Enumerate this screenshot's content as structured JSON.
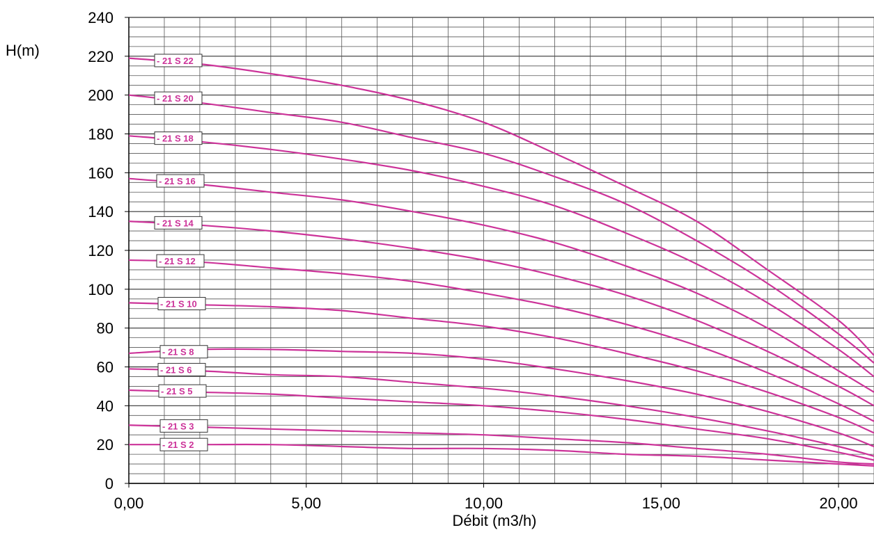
{
  "chart_data": {
    "type": "line",
    "ylabel": "H(m)",
    "xlabel": "Débit  (m3/h)",
    "xlim": [
      0,
      21
    ],
    "ylim": [
      0,
      240
    ],
    "x_ticks": [
      0,
      5,
      10,
      15,
      20
    ],
    "x_tick_labels": [
      "0,00",
      "5,00",
      "10,00",
      "15,00",
      "20,00"
    ],
    "y_ticks": [
      0,
      20,
      40,
      60,
      80,
      100,
      120,
      140,
      160,
      180,
      200,
      220,
      240
    ],
    "y_tick_labels": [
      "0",
      "20",
      "40",
      "60",
      "80",
      "100",
      "120",
      "140",
      "160",
      "180",
      "200",
      "220",
      "240"
    ],
    "grid": true,
    "line_color": "#cc3399",
    "series": [
      {
        "name": "- 21 S 22",
        "x": [
          0,
          2,
          4,
          6,
          8,
          10,
          12,
          14,
          16,
          18,
          20,
          21
        ],
        "y": [
          219,
          216,
          211,
          205,
          197,
          186,
          170,
          153,
          135,
          110,
          84,
          66
        ]
      },
      {
        "name": "- 21 S 20",
        "x": [
          0,
          2,
          4,
          6,
          8,
          10,
          12,
          14,
          16,
          18,
          20,
          21
        ],
        "y": [
          200,
          196,
          191,
          186,
          178,
          170,
          158,
          144,
          125,
          103,
          77,
          62
        ]
      },
      {
        "name": "- 21 S 18",
        "x": [
          0,
          2,
          4,
          6,
          8,
          10,
          12,
          14,
          16,
          18,
          20,
          21
        ],
        "y": [
          179,
          176,
          172,
          167,
          161,
          153,
          143,
          129,
          113,
          93,
          69,
          55
        ]
      },
      {
        "name": "- 21 S 16",
        "x": [
          0,
          2,
          4,
          6,
          8,
          10,
          12,
          14,
          16,
          18,
          20,
          21
        ],
        "y": [
          157,
          154,
          150,
          146,
          140,
          133,
          124,
          112,
          98,
          80,
          58,
          47
        ]
      },
      {
        "name": "- 21 S 14",
        "x": [
          0,
          2,
          4,
          6,
          8,
          10,
          12,
          14,
          16,
          18,
          20,
          21
        ],
        "y": [
          135,
          133,
          130,
          126,
          121,
          115,
          107,
          97,
          84,
          68,
          50,
          40
        ]
      },
      {
        "name": "- 21 S 12",
        "x": [
          0,
          2,
          4,
          6,
          8,
          10,
          12,
          14,
          16,
          18,
          20,
          21
        ],
        "y": [
          115,
          114,
          111,
          108,
          104,
          98,
          91,
          82,
          71,
          57,
          41,
          32
        ]
      },
      {
        "name": "- 21 S 10",
        "x": [
          0,
          2,
          4,
          6,
          8,
          10,
          12,
          14,
          16,
          18,
          20,
          21
        ],
        "y": [
          93,
          92,
          91,
          89,
          85,
          81,
          75,
          67,
          58,
          47,
          34,
          26
        ]
      },
      {
        "name": "- 21 S  8",
        "x": [
          0,
          2,
          4,
          6,
          8,
          10,
          12,
          14,
          16,
          18,
          20,
          21
        ],
        "y": [
          67,
          69,
          69,
          68,
          67,
          64,
          59,
          53,
          46,
          37,
          26,
          19
        ]
      },
      {
        "name": "- 21 S  6",
        "x": [
          0,
          2,
          4,
          6,
          8,
          10,
          12,
          14,
          16,
          18,
          20,
          21
        ],
        "y": [
          59,
          58,
          56,
          55,
          52,
          49,
          45,
          40,
          34,
          27,
          19,
          14
        ]
      },
      {
        "name": "- 21 S  5",
        "x": [
          0,
          2,
          4,
          6,
          8,
          10,
          12,
          14,
          16,
          18,
          20,
          21
        ],
        "y": [
          48,
          47,
          46,
          44,
          42,
          40,
          37,
          33,
          28,
          23,
          16,
          12
        ]
      },
      {
        "name": "- 21 S 3",
        "x": [
          0,
          2,
          4,
          6,
          8,
          10,
          12,
          14,
          16,
          18,
          20,
          21
        ],
        "y": [
          30,
          29,
          28,
          27,
          26,
          25,
          23,
          21,
          18,
          15,
          11,
          10
        ]
      },
      {
        "name": "- 21 S 2",
        "x": [
          0,
          2,
          4,
          6,
          8,
          10,
          12,
          14,
          16,
          18,
          20,
          21
        ],
        "y": [
          20,
          20,
          20,
          19,
          18,
          18,
          17,
          15,
          14,
          12,
          10,
          9
        ]
      }
    ]
  }
}
